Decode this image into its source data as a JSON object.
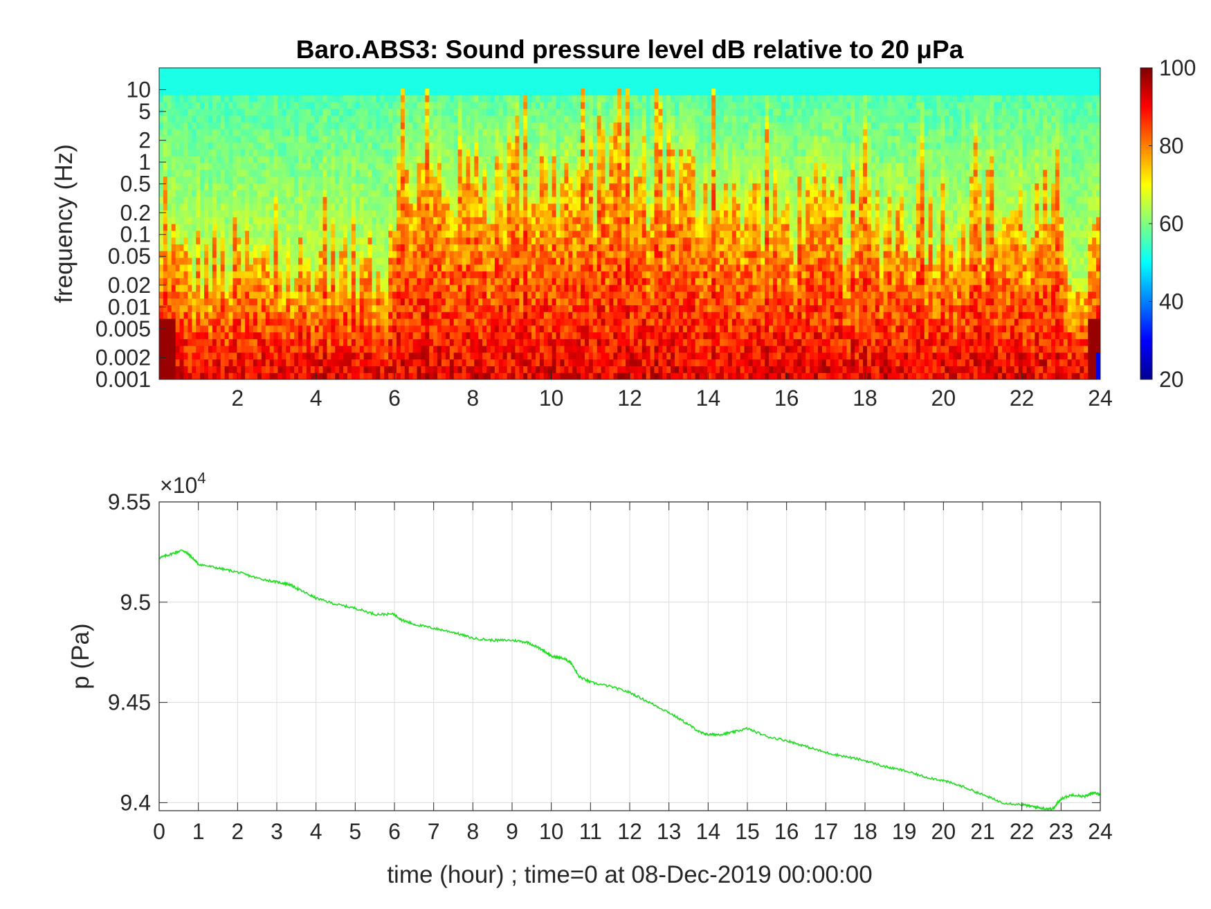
{
  "chart_data": [
    {
      "type": "heatmap",
      "title": "Baro.ABS3: Sound pressure level dB relative to 20 μPa",
      "xlabel": "",
      "ylabel": "frequency (Hz)",
      "xlim": [
        0,
        24
      ],
      "ylim": [
        0.001,
        20
      ],
      "yscale": "log",
      "xticks": [
        "2",
        "4",
        "6",
        "8",
        "10",
        "12",
        "14",
        "16",
        "18",
        "20",
        "22",
        "24"
      ],
      "yticks": [
        "10",
        "5",
        "2",
        "1",
        "0.5",
        "0.2",
        "0.1",
        "0.05",
        "0.02",
        "0.01",
        "0.005",
        "0.002",
        "0.001"
      ],
      "colormap": "jet",
      "colorbar": {
        "range": [
          20,
          100
        ],
        "ticks": [
          "100",
          "80",
          "60",
          "40",
          "20"
        ]
      },
      "z_description_levels": {
        "background_high_freq": 55,
        "quiet_hours": [
          [
            0,
            5.8
          ],
          [
            22.8,
            24
          ]
        ],
        "active_hours": [
          [
            6,
            14.5
          ]
        ],
        "low_freq_level": 92
      }
    },
    {
      "type": "line",
      "title": "",
      "xlabel": "time (hour) ; time=0 at 08-Dec-2019 00:00:00",
      "ylabel": "p (Pa)",
      "y_exponent_label": "×10",
      "y_exponent": "4",
      "xlim": [
        0,
        24
      ],
      "ylim": [
        9.396,
        9.55
      ],
      "grid": true,
      "xticks": [
        "0",
        "1",
        "2",
        "3",
        "4",
        "5",
        "6",
        "7",
        "8",
        "9",
        "10",
        "11",
        "12",
        "13",
        "14",
        "15",
        "16",
        "17",
        "18",
        "19",
        "20",
        "21",
        "22",
        "23",
        "24"
      ],
      "yticks": [
        "9.55",
        "9.5",
        "9.45",
        "9.4"
      ],
      "series": [
        {
          "color": "#22dd22",
          "x": [
            0,
            0.3,
            0.6,
            0.8,
            1.0,
            1.5,
            2.0,
            2.5,
            3.0,
            3.3,
            3.6,
            4.0,
            4.5,
            5.0,
            5.5,
            6.0,
            6.2,
            6.5,
            7.0,
            7.5,
            8.0,
            8.5,
            9.0,
            9.4,
            9.8,
            10.0,
            10.3,
            10.5,
            10.7,
            11.0,
            11.5,
            12.0,
            12.5,
            13.0,
            13.5,
            13.8,
            14.0,
            14.3,
            14.6,
            15.0,
            15.5,
            16.0,
            16.5,
            17.0,
            17.5,
            18.0,
            18.5,
            19.0,
            19.5,
            20.0,
            20.5,
            21.0,
            21.5,
            22.0,
            22.3,
            22.6,
            22.8,
            23.0,
            23.3,
            23.6,
            23.8,
            24.0
          ],
          "y": [
            9.522,
            9.524,
            9.526,
            9.523,
            9.519,
            9.517,
            9.515,
            9.512,
            9.51,
            9.509,
            9.506,
            9.502,
            9.499,
            9.497,
            9.494,
            9.494,
            9.491,
            9.489,
            9.487,
            9.485,
            9.482,
            9.481,
            9.481,
            9.48,
            9.476,
            9.473,
            9.472,
            9.47,
            9.463,
            9.46,
            9.458,
            9.455,
            9.45,
            9.445,
            9.439,
            9.435,
            9.434,
            9.434,
            9.435,
            9.437,
            9.433,
            9.431,
            9.428,
            9.425,
            9.423,
            9.421,
            9.418,
            9.416,
            9.413,
            9.411,
            9.408,
            9.404,
            9.4,
            9.399,
            9.398,
            9.397,
            9.397,
            9.402,
            9.404,
            9.403,
            9.405,
            9.404
          ]
        }
      ]
    }
  ]
}
